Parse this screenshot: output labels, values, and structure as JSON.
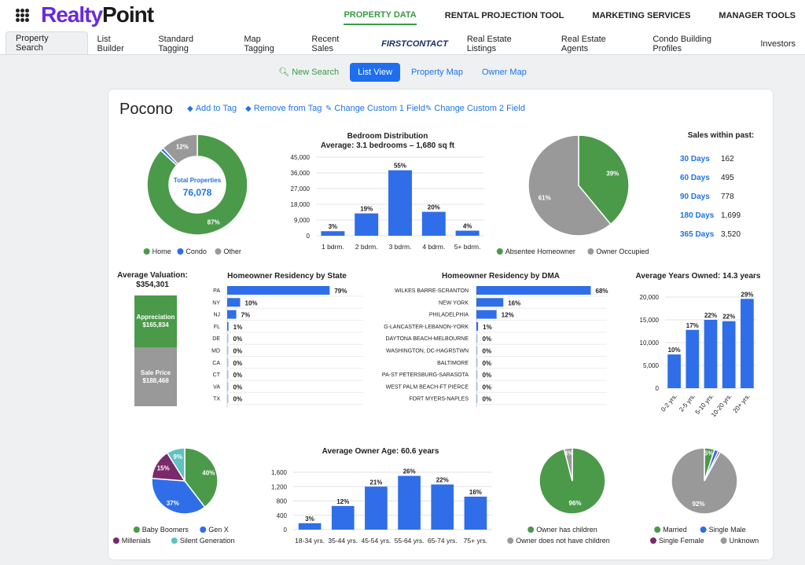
{
  "brand": {
    "logo_part1": "Realty",
    "logo_part2": "Point"
  },
  "top_nav": [
    "PROPERTY DATA",
    "RENTAL PROJECTION TOOL",
    "MARKETING SERVICES",
    "MANAGER TOOLS"
  ],
  "tabs": [
    "Property Search",
    "List Builder",
    "Standard Tagging",
    "Map Tagging",
    "Recent Sales",
    "FIRSTCONTACT",
    "Real Estate Listings",
    "Real Estate Agents",
    "Condo Building Profiles",
    "Investors"
  ],
  "view_buttons": [
    "New Search",
    "List View",
    "Property Map",
    "Owner Map"
  ],
  "page_title": "Pocono",
  "actions": [
    "Add to Tag",
    "Remove from Tag",
    "Change Custom 1 Field",
    "Change Custom 2 Field"
  ],
  "total_properties": {
    "label": "Total Properties",
    "value": "76,078"
  },
  "sales_within": {
    "title": "Sales within past:",
    "rows": [
      {
        "label": "30 Days",
        "value": "162"
      },
      {
        "label": "60 Days",
        "value": "495"
      },
      {
        "label": "90 Days",
        "value": "778"
      },
      {
        "label": "180 Days",
        "value": "1,699"
      },
      {
        "label": "365 Days",
        "value": "3,520"
      }
    ]
  },
  "valuation": {
    "title": "Average Valuation:",
    "value": "$354,301",
    "appreciation_label": "Appreciation",
    "appreciation_value": "$165,834",
    "sale_label": "Sale Price",
    "sale_value": "$188,468"
  },
  "colors": {
    "green": "#4a9a4a",
    "blue": "#2f6ee8",
    "gray": "#999999",
    "purple": "#7a2a6a",
    "teal": "#5fc2c2",
    "accent_green": "#3a9a46",
    "link_blue": "#1e73e8"
  },
  "chart_data": [
    {
      "id": "property-type",
      "type": "pie",
      "style": "donut",
      "categories": [
        "Home",
        "Condo",
        "Other"
      ],
      "values": [
        87,
        1,
        12
      ],
      "labels": [
        "87%",
        "",
        "12%"
      ],
      "colors": [
        "#4a9a4a",
        "#2f6ee8",
        "#999999"
      ],
      "legend": "bottom"
    },
    {
      "id": "bedrooms",
      "type": "bar",
      "title": "Bedroom Distribution",
      "subtitle": "Average: 3.1 bedrooms – 1,680 sq ft",
      "categories": [
        "1 bdrm.",
        "2 bdrm.",
        "3 bdrm.",
        "4 bdrm.",
        "5+ bdrm."
      ],
      "values": [
        2600,
        12800,
        37500,
        13700,
        2900
      ],
      "labels": [
        "3%",
        "19%",
        "55%",
        "20%",
        "4%"
      ],
      "yticks": [
        "0",
        "9,000",
        "18,000",
        "27,000",
        "36,000",
        "45,000"
      ],
      "ylim": [
        0,
        45000
      ]
    },
    {
      "id": "homeowner-status",
      "type": "pie",
      "categories": [
        "Absentee Homeowner",
        "Owner Occupied"
      ],
      "values": [
        39,
        61
      ],
      "labels": [
        "39%",
        "61%"
      ],
      "colors": [
        "#4a9a4a",
        "#999999"
      ],
      "legend": "bottom"
    },
    {
      "id": "residency-state",
      "type": "bar",
      "orientation": "horizontal",
      "title": "Homeowner Residency by State",
      "categories": [
        "PA",
        "NY",
        "NJ",
        "FL",
        "DE",
        "MD",
        "CA",
        "CT",
        "VA",
        "TX"
      ],
      "values": [
        79,
        10,
        7,
        1,
        0,
        0,
        0,
        0,
        0,
        0
      ],
      "labels": [
        "79%",
        "10%",
        "7%",
        "1%",
        "0%",
        "0%",
        "0%",
        "0%",
        "0%",
        "0%"
      ]
    },
    {
      "id": "residency-dma",
      "type": "bar",
      "orientation": "horizontal",
      "title": "Homeowner Residency by DMA",
      "categories": [
        "WILKES BARRE-SCRANTON",
        "NEW YORK",
        "PHILADELPHIA",
        "G-LANCASTER-LEBANON-YORK",
        "DAYTONA BEACH-MELBOURNE",
        "WASHINGTON, DC-HAGRSTWN",
        "BALTIMORE",
        "PA-ST PETERSBURG-SARASOTA",
        "WEST PALM BEACH-FT PIERCE",
        "FORT MYERS-NAPLES"
      ],
      "values": [
        68,
        16,
        12,
        1,
        0,
        0,
        0,
        0,
        0,
        0
      ],
      "labels": [
        "68%",
        "16%",
        "12%",
        "1%",
        "0%",
        "0%",
        "0%",
        "0%",
        "0%",
        "0%"
      ]
    },
    {
      "id": "years-owned",
      "type": "bar",
      "title": "Average Years Owned: 14.3 years",
      "categories": [
        "0-2 yrs.",
        "2-5 yrs.",
        "5-10 yrs.",
        "10-20 yrs.",
        "20+ yrs."
      ],
      "values": [
        7400,
        12800,
        15000,
        14700,
        19600
      ],
      "labels": [
        "10%",
        "17%",
        "22%",
        "22%",
        "29%"
      ],
      "yticks": [
        "0",
        "5,000",
        "10,000",
        "15,000",
        "20,000"
      ],
      "ylim": [
        0,
        20000
      ]
    },
    {
      "id": "generation",
      "type": "pie",
      "categories": [
        "Baby Boomers",
        "Gen X",
        "Millenials",
        "Silent Generation"
      ],
      "values": [
        40,
        37,
        15,
        9
      ],
      "labels": [
        "40%",
        "37%",
        "15%",
        "9%"
      ],
      "colors": [
        "#4a9a4a",
        "#2f6ee8",
        "#7a2a6a",
        "#5fc2c2"
      ],
      "legend": "bottom"
    },
    {
      "id": "owner-age",
      "type": "bar",
      "title": "Average Owner Age: 60.6 years",
      "categories": [
        "18-34 yrs.",
        "35-44 yrs.",
        "45-54 yrs.",
        "55-64 yrs.",
        "65-74 yrs.",
        "75+ yrs."
      ],
      "values": [
        180,
        660,
        1200,
        1500,
        1260,
        920
      ],
      "labels": [
        "3%",
        "12%",
        "21%",
        "26%",
        "22%",
        "16%"
      ],
      "yticks": [
        "0",
        "400",
        "800",
        "1,200",
        "1,600"
      ],
      "ylim": [
        0,
        1600
      ]
    },
    {
      "id": "children",
      "type": "pie",
      "categories": [
        "Owner has children",
        "Owner does not have children"
      ],
      "values": [
        96,
        4
      ],
      "labels": [
        "96%",
        "4%"
      ],
      "colors": [
        "#4a9a4a",
        "#999999"
      ],
      "legend": "bottom"
    },
    {
      "id": "marital",
      "type": "pie",
      "categories": [
        "Married",
        "Single Male",
        "Single Female",
        "Unknown"
      ],
      "values": [
        5,
        2,
        1,
        92
      ],
      "labels": [
        "5%",
        "",
        "",
        "92%"
      ],
      "colors": [
        "#4a9a4a",
        "#2f6ee8",
        "#7a2a6a",
        "#999999"
      ],
      "legend": "bottom"
    }
  ]
}
